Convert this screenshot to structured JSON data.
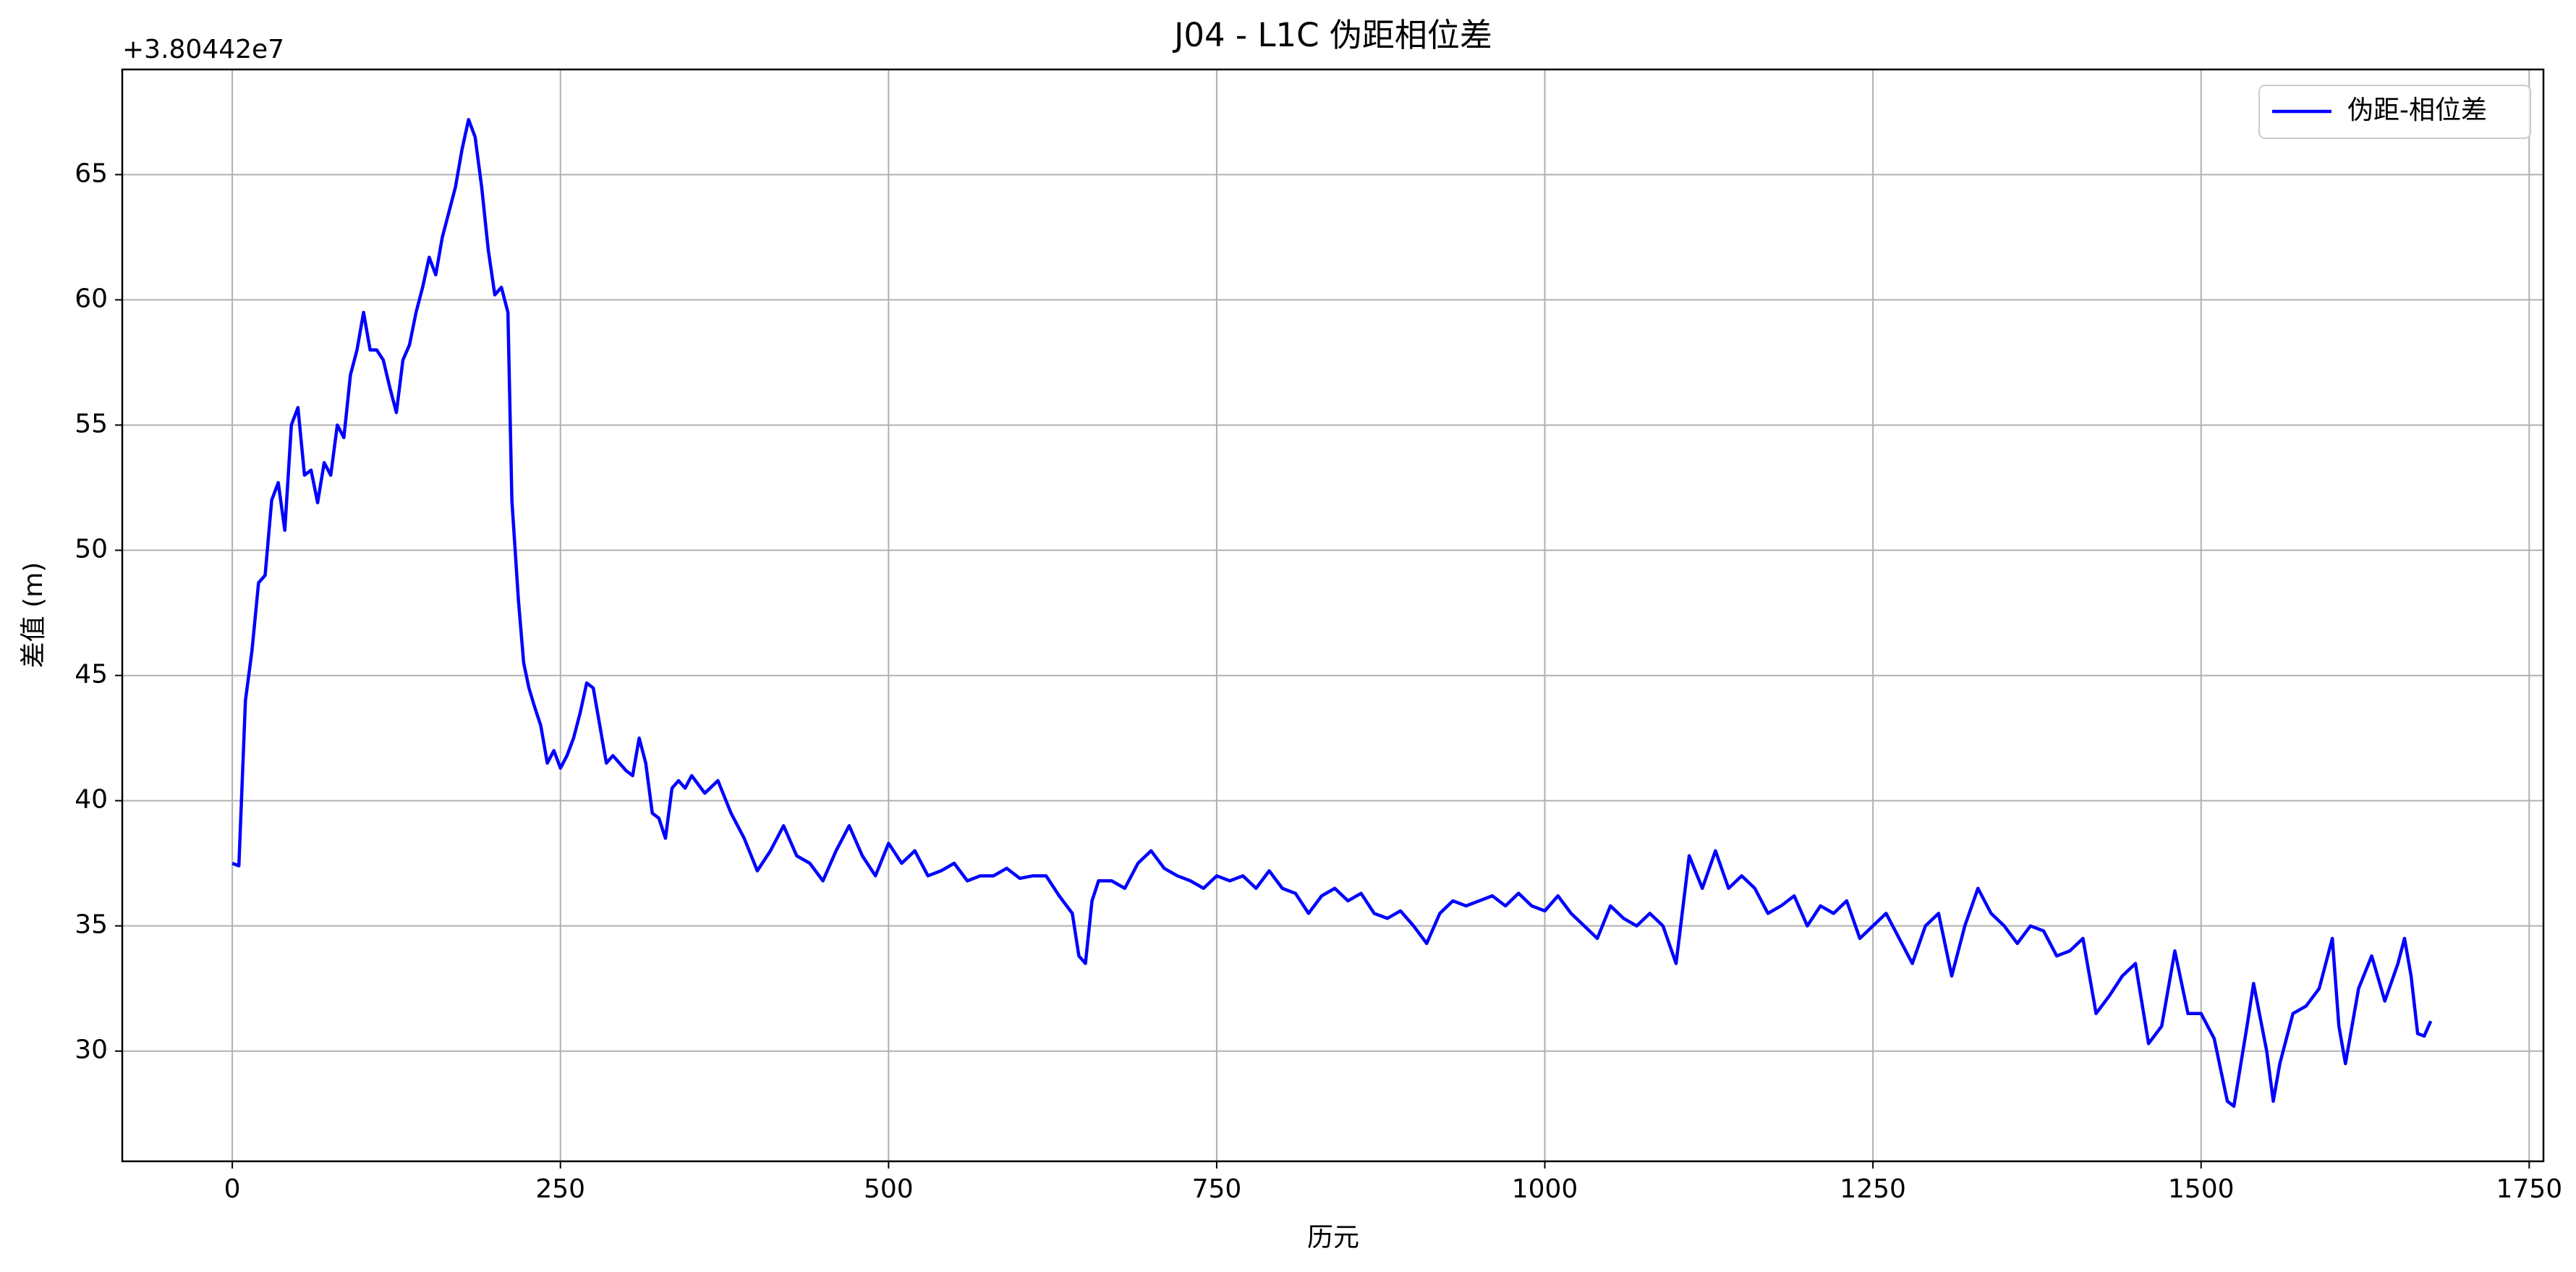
{
  "chart_data": {
    "type": "line",
    "title": "J04 - L1C 伪距相位差",
    "x_label": "历元",
    "y_label": "差值 (m)",
    "y_offset_text": "+3.80442e7",
    "x": [
      0,
      5,
      10,
      15,
      20,
      25,
      30,
      35,
      40,
      45,
      50,
      55,
      60,
      65,
      70,
      75,
      80,
      85,
      90,
      95,
      100,
      105,
      110,
      115,
      120,
      125,
      130,
      135,
      140,
      145,
      150,
      155,
      160,
      165,
      170,
      175,
      180,
      185,
      190,
      195,
      200,
      205,
      210,
      213,
      218,
      222,
      226,
      230,
      235,
      240,
      245,
      250,
      255,
      260,
      265,
      270,
      275,
      280,
      285,
      290,
      295,
      300,
      305,
      310,
      315,
      320,
      325,
      330,
      335,
      340,
      345,
      350,
      360,
      370,
      380,
      390,
      400,
      410,
      420,
      430,
      440,
      450,
      460,
      470,
      480,
      490,
      500,
      510,
      520,
      530,
      540,
      550,
      560,
      570,
      580,
      590,
      600,
      610,
      620,
      630,
      640,
      645,
      650,
      655,
      660,
      670,
      680,
      690,
      700,
      710,
      720,
      730,
      740,
      750,
      760,
      770,
      780,
      790,
      800,
      810,
      820,
      830,
      840,
      850,
      860,
      870,
      880,
      890,
      900,
      910,
      920,
      930,
      940,
      950,
      960,
      970,
      980,
      990,
      1000,
      1010,
      1020,
      1030,
      1040,
      1050,
      1060,
      1070,
      1080,
      1090,
      1100,
      1110,
      1120,
      1130,
      1140,
      1150,
      1160,
      1170,
      1180,
      1190,
      1200,
      1210,
      1220,
      1230,
      1240,
      1250,
      1260,
      1270,
      1280,
      1290,
      1300,
      1310,
      1320,
      1330,
      1340,
      1350,
      1360,
      1370,
      1380,
      1390,
      1400,
      1410,
      1420,
      1430,
      1440,
      1450,
      1460,
      1470,
      1480,
      1490,
      1500,
      1510,
      1520,
      1525,
      1535,
      1540,
      1550,
      1555,
      1560,
      1570,
      1580,
      1590,
      1600,
      1605,
      1610,
      1620,
      1630,
      1640,
      1650,
      1655,
      1660,
      1665,
      1670,
      1675
    ],
    "series": [
      {
        "name": "伪距-相位差",
        "color": "#0000ff",
        "values": [
          37.5,
          37.4,
          44,
          46,
          48.7,
          49,
          52,
          52.7,
          50.8,
          55,
          55.7,
          53,
          53.2,
          51.9,
          53.5,
          53,
          55,
          54.5,
          57,
          58,
          59.5,
          58,
          58,
          57.6,
          56.5,
          55.5,
          57.6,
          58.2,
          59.5,
          60.5,
          61.7,
          61,
          62.5,
          63.5,
          64.5,
          66,
          67.2,
          66.5,
          64.5,
          62,
          60.2,
          60.5,
          59.5,
          52,
          48,
          45.5,
          44.5,
          43.8,
          43,
          41.5,
          42,
          41.3,
          41.8,
          42.5,
          43.5,
          44.7,
          44.5,
          43,
          41.5,
          41.8,
          41.5,
          41.2,
          41,
          42.5,
          41.5,
          39.5,
          39.3,
          38.5,
          40.5,
          40.8,
          40.5,
          41,
          40.3,
          40.8,
          39.5,
          38.5,
          37.2,
          38,
          39,
          37.8,
          37.5,
          36.8,
          38,
          39,
          37.8,
          37,
          38.3,
          37.5,
          38,
          37,
          37.2,
          37.5,
          36.8,
          37,
          37,
          37.3,
          36.9,
          37,
          37,
          36.2,
          35.5,
          33.8,
          33.5,
          36,
          36.8,
          36.8,
          36.5,
          37.5,
          38,
          37.3,
          37,
          36.8,
          36.5,
          37,
          36.8,
          37,
          36.5,
          37.2,
          36.5,
          36.3,
          35.5,
          36.2,
          36.5,
          36,
          36.3,
          35.5,
          35.3,
          35.6,
          35,
          34.3,
          35.5,
          36,
          35.8,
          36,
          36.2,
          35.8,
          36.3,
          35.8,
          35.6,
          36.2,
          35.5,
          35,
          34.5,
          35.8,
          35.3,
          35,
          35.5,
          35,
          33.5,
          37.8,
          36.5,
          38,
          36.5,
          37,
          36.5,
          35.5,
          35.8,
          36.2,
          35,
          35.8,
          35.5,
          36,
          34.5,
          35,
          35.5,
          34.5,
          33.5,
          35,
          35.5,
          33,
          35,
          36.5,
          35.5,
          35,
          34.3,
          35,
          34.8,
          33.8,
          34,
          34.5,
          31.5,
          32.2,
          33,
          33.5,
          30.3,
          31,
          34,
          31.5,
          31.5,
          30.5,
          28,
          27.8,
          31,
          32.7,
          30,
          28,
          29.5,
          31.5,
          31.8,
          32.5,
          34.5,
          31,
          29.5,
          32.5,
          33.8,
          32,
          33.5,
          34.5,
          33,
          30.7,
          30.6,
          31.2
        ]
      }
    ],
    "xlim": [
      -83.85,
      1760.85
    ],
    "xticks": [
      0,
      250,
      500,
      750,
      1000,
      1250,
      1500,
      1750
    ],
    "ylim": [
      25.6,
      69.2
    ],
    "yticks": [
      30,
      35,
      40,
      45,
      50,
      55,
      60,
      65
    ],
    "grid": true,
    "legend": "upper right"
  }
}
